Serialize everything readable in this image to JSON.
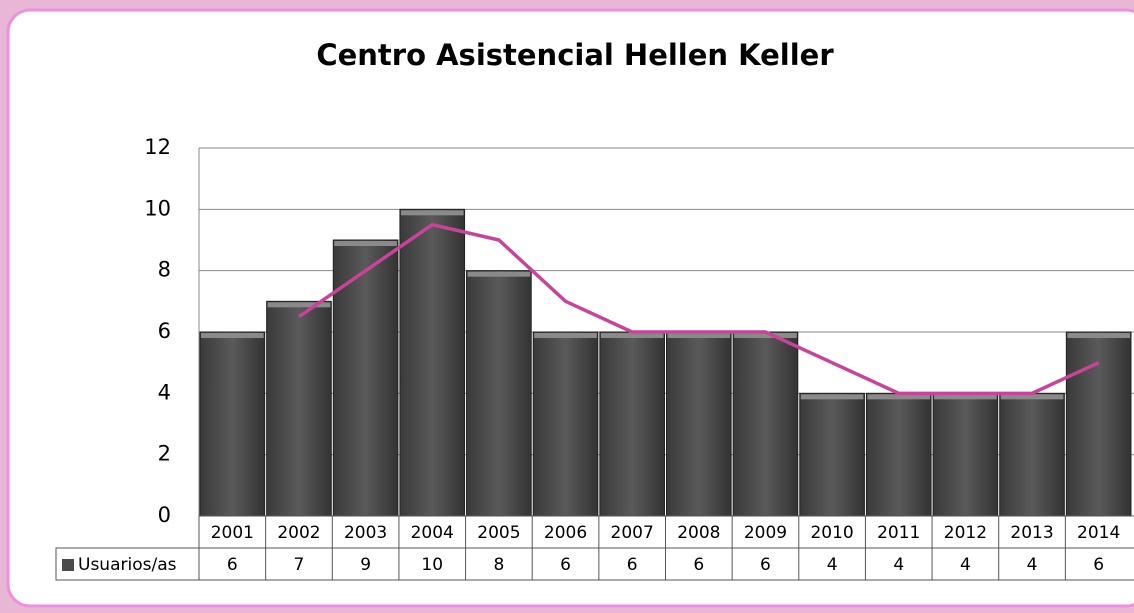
{
  "chart_data": {
    "type": "bar",
    "title": "Centro Asistencial Hellen Keller",
    "categories": [
      "2001",
      "2002",
      "2003",
      "2004",
      "2005",
      "2006",
      "2007",
      "2008",
      "2009",
      "2010",
      "2011",
      "2012",
      "2013",
      "2014"
    ],
    "series": [
      {
        "name": "Usuarios/as",
        "color": "#4a4a4a",
        "values": [
          6,
          7,
          9,
          10,
          8,
          6,
          6,
          6,
          6,
          4,
          4,
          4,
          4,
          6
        ]
      }
    ],
    "trend": {
      "color": "#c8449a",
      "values": [
        null,
        6.5,
        8,
        9.5,
        9,
        7,
        6,
        6,
        6,
        5,
        4,
        4,
        4,
        5
      ]
    },
    "ylim": [
      0,
      12
    ],
    "yticks": [
      0,
      2,
      4,
      6,
      8,
      10,
      12
    ],
    "grid": true,
    "data_table": true
  }
}
